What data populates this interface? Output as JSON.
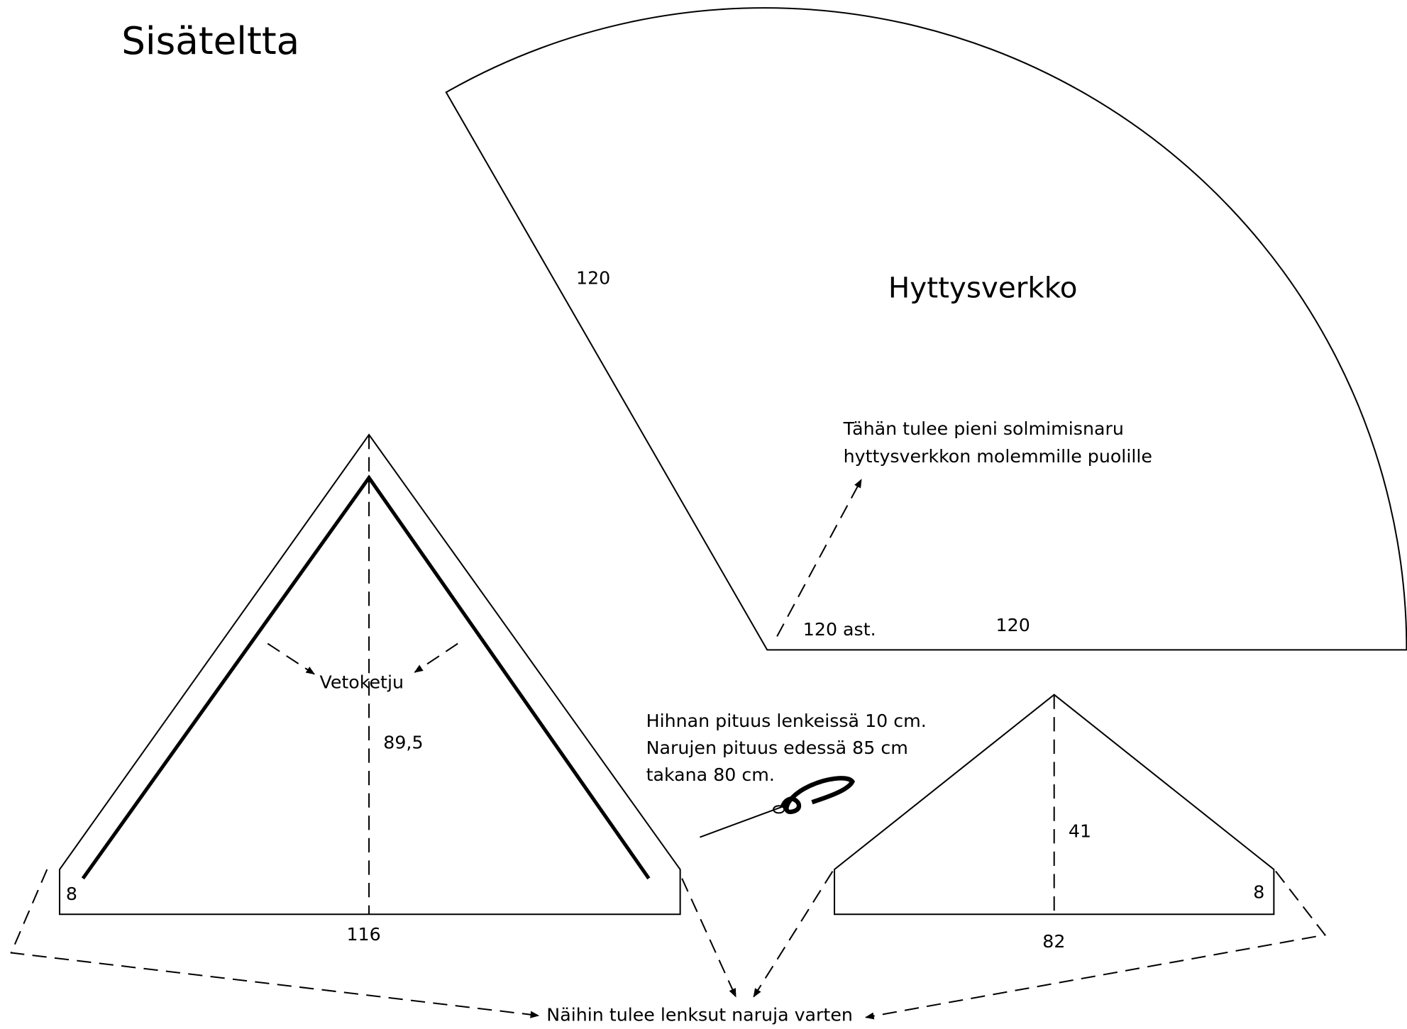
{
  "title": "Sisäteltta",
  "mosquito_net": {
    "title": "Hyttysverkko",
    "side_length": "120",
    "base_length": "120",
    "angle": "120 ast.",
    "note": [
      "Tähän tulee pieni solmimisnaru",
      "hyttysverkkon molemmille puolille"
    ]
  },
  "front_panel": {
    "zipper": "Vetoketju",
    "height": "89,5",
    "wall": "8",
    "base": "116"
  },
  "strap_note": [
    "Hihnan pituus lenkeissä 10 cm.",
    "Narujen pituus edessä 85 cm",
    "takana 80 cm."
  ],
  "back_panel": {
    "height": "41",
    "wall": "8",
    "base": "82"
  },
  "loops_note": "Näihin tulee lenksut naruja varten"
}
